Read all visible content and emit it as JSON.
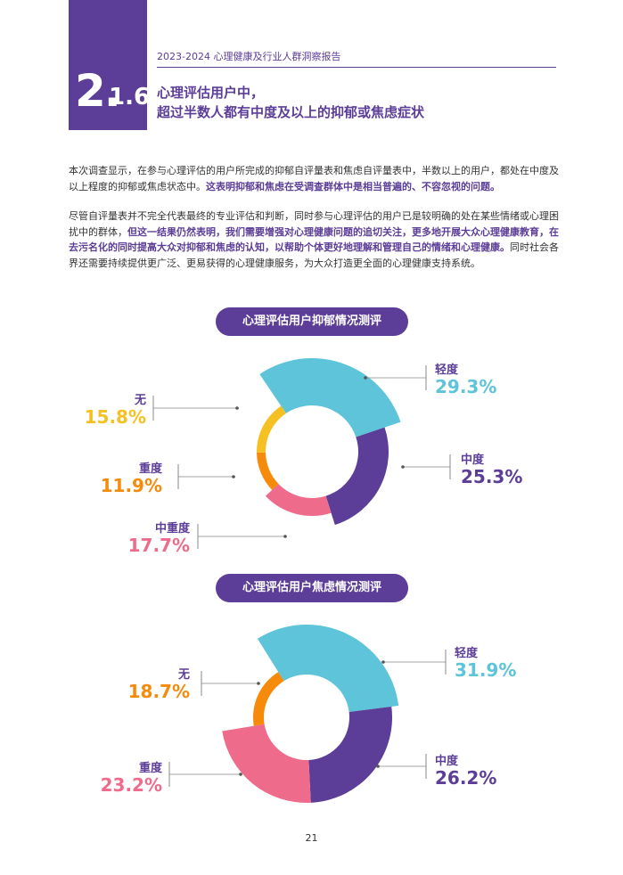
{
  "header": {
    "section_major": "2.",
    "section_minor": "1.6",
    "report_title": "2023-2024 心理健康及行业人群洞察报告",
    "headline_line1": "心理评估用户中，",
    "headline_line2": "超过半数人都有中度及以上的抑郁或焦虑症状"
  },
  "paragraphs": {
    "p1_plain": "本次调查显示，在参与心理评估的用户所完成的抑郁自评量表和焦虑自评量表中，半数以上的用户，都处在中度及以上程度的抑郁或焦虑状态中。",
    "p1_highlight": "这表明抑郁和焦虑在受调查群体中是相当普遍的、不容忽视的问题。",
    "p2_plain1": "尽管自评量表并不完全代表最终的专业评估和判断，同时参与心理评估的用户已是较明确的处在某些情绪或心理困扰中的群体，",
    "p2_highlight": "但这一结果仍然表明，我们需要增强对心理健康问题的追切关注，更多地开展大众心理健康教育，在去污名化的同时提高大众对抑郁和焦虑的认知，以帮助个体更好地理解和管理自己的情绪和心理健康。",
    "p2_plain2": "同时社会各界还需要持续提供更广泛、更易获得的心理健康服务，为大众打造更全面的心理健康支持系统。"
  },
  "chart_data": [
    {
      "type": "pie",
      "title": "心理评估用户抑郁情况测评",
      "slices": [
        {
          "name": "轻度",
          "value": 29.3,
          "label": "29.3%",
          "color": "#5ec4d9"
        },
        {
          "name": "中度",
          "value": 25.3,
          "label": "25.3%",
          "color": "#5c3d97"
        },
        {
          "name": "中重度",
          "value": 17.7,
          "label": "17.7%",
          "color": "#ef6b8c"
        },
        {
          "name": "重度",
          "value": 11.9,
          "label": "11.9%",
          "color": "#f58a0b"
        },
        {
          "name": "无",
          "value": 15.8,
          "label": "15.8%",
          "color": "#f5c022"
        }
      ]
    },
    {
      "type": "pie",
      "title": "心理评估用户焦虑情况测评",
      "slices": [
        {
          "name": "轻度",
          "value": 31.9,
          "label": "31.9%",
          "color": "#5ec4d9"
        },
        {
          "name": "中度",
          "value": 26.2,
          "label": "26.2%",
          "color": "#5c3d97"
        },
        {
          "name": "重度",
          "value": 23.2,
          "label": "23.2%",
          "color": "#ef6b8c"
        },
        {
          "name": "无",
          "value": 18.7,
          "label": "18.7%",
          "color": "#f58a0b"
        }
      ]
    }
  ],
  "footer": {
    "page_number": "21"
  }
}
